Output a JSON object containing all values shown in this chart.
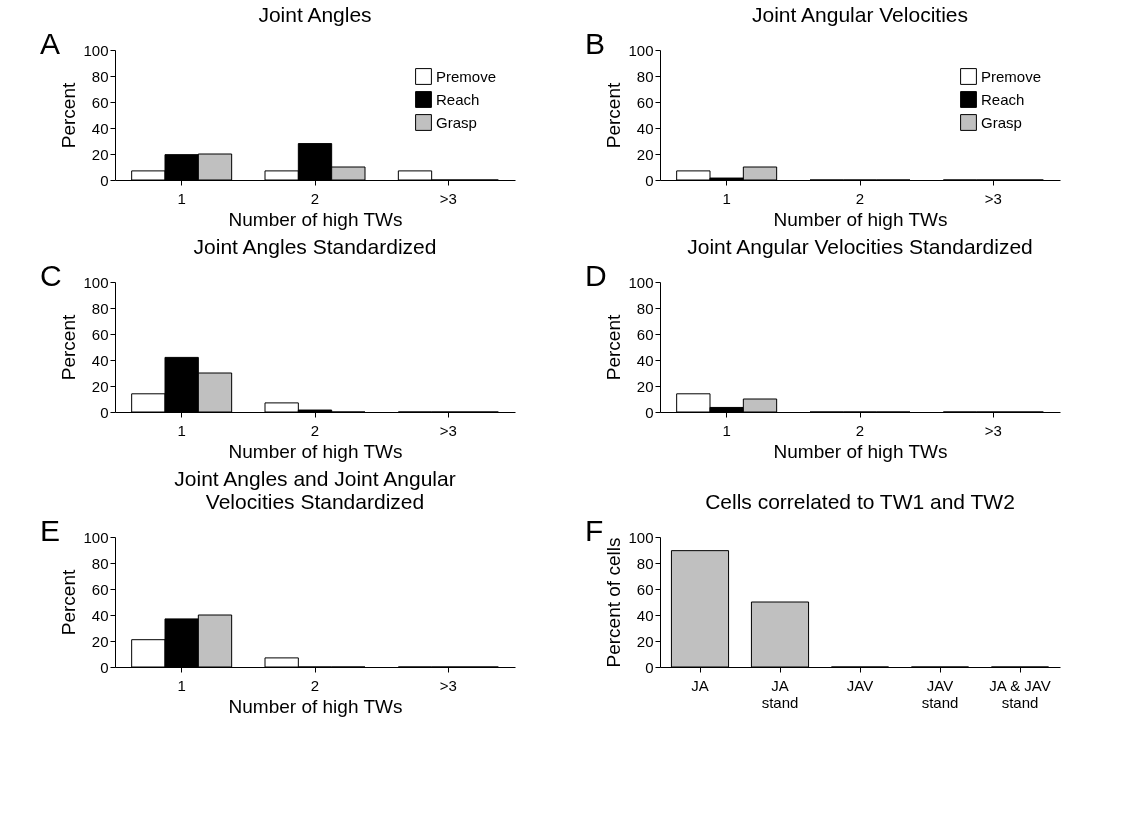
{
  "chart_data": [
    {
      "type": "bar",
      "title": "Joint Angles",
      "annotations": [
        "A"
      ],
      "xlabel": "Number of high TWs",
      "ylabel": "Percent",
      "categories": [
        "1",
        "2",
        ">3"
      ],
      "ylim": [
        0,
        100
      ],
      "yticks": [
        0,
        20,
        40,
        60,
        80,
        100
      ],
      "legend": "top right",
      "grid": false,
      "series": [
        {
          "name": "Premove",
          "color": "#ffffff",
          "values": [
            7,
            7,
            7
          ]
        },
        {
          "name": "Reach",
          "color": "#000000",
          "values": [
            19.5,
            28,
            0
          ]
        },
        {
          "name": "Grasp",
          "color": "#c0c0c0",
          "values": [
            20,
            10,
            0
          ]
        }
      ]
    },
    {
      "type": "bar",
      "title": "Joint Angular Velocities",
      "annotations": [
        "B"
      ],
      "xlabel": "Number of high TWs",
      "ylabel": "Percent",
      "categories": [
        "1",
        "2",
        ">3"
      ],
      "ylim": [
        0,
        100
      ],
      "yticks": [
        0,
        20,
        40,
        60,
        80,
        100
      ],
      "legend": "top right",
      "grid": false,
      "series": [
        {
          "name": "Premove",
          "color": "#ffffff",
          "values": [
            7,
            0,
            0
          ]
        },
        {
          "name": "Reach",
          "color": "#000000",
          "values": [
            1.5,
            0,
            0
          ]
        },
        {
          "name": "Grasp",
          "color": "#c0c0c0",
          "values": [
            10,
            0,
            0
          ]
        }
      ]
    },
    {
      "type": "bar",
      "title": "Joint Angles Standardized",
      "annotations": [
        "C"
      ],
      "xlabel": "Number of high TWs",
      "ylabel": "Percent",
      "categories": [
        "1",
        "2",
        ">3"
      ],
      "ylim": [
        0,
        100
      ],
      "yticks": [
        0,
        20,
        40,
        60,
        80,
        100
      ],
      "grid": false,
      "series": [
        {
          "color": "#ffffff",
          "values": [
            14,
            7,
            0
          ]
        },
        {
          "color": "#000000",
          "values": [
            42,
            1.5,
            0
          ]
        },
        {
          "color": "#c0c0c0",
          "values": [
            30,
            0,
            0
          ]
        }
      ]
    },
    {
      "type": "bar",
      "title": "Joint Angular Velocities Standardized",
      "annotations": [
        "D"
      ],
      "xlabel": "Number of high TWs",
      "ylabel": "Percent",
      "categories": [
        "1",
        "2",
        ">3"
      ],
      "ylim": [
        0,
        100
      ],
      "yticks": [
        0,
        20,
        40,
        60,
        80,
        100
      ],
      "grid": false,
      "series": [
        {
          "color": "#ffffff",
          "values": [
            14,
            0,
            0
          ]
        },
        {
          "color": "#000000",
          "values": [
            3.5,
            0,
            0
          ]
        },
        {
          "color": "#c0c0c0",
          "values": [
            10,
            0,
            0
          ]
        }
      ]
    },
    {
      "type": "bar",
      "title": "Joint Angles and Joint Angular\nVelocities Standardized",
      "annotations": [
        "E"
      ],
      "xlabel": "Number of high TWs",
      "ylabel": "Percent",
      "categories": [
        "1",
        "2",
        ">3"
      ],
      "ylim": [
        0,
        100
      ],
      "yticks": [
        0,
        20,
        40,
        60,
        80,
        100
      ],
      "grid": false,
      "series": [
        {
          "color": "#ffffff",
          "values": [
            21,
            7,
            0
          ]
        },
        {
          "color": "#000000",
          "values": [
            37,
            0,
            0
          ]
        },
        {
          "color": "#c0c0c0",
          "values": [
            40,
            0,
            0
          ]
        }
      ]
    },
    {
      "type": "bar",
      "title": "Cells correlated to TW1 and TW2",
      "annotations": [
        "F"
      ],
      "ylabel": "Percent of cells",
      "categories": [
        "JA",
        "JA\nstand",
        "JAV",
        "JAV\nstand",
        "JA & JAV\nstand"
      ],
      "ylim": [
        0,
        100
      ],
      "yticks": [
        0,
        20,
        40,
        60,
        80,
        100
      ],
      "grid": false,
      "series": [
        {
          "color": "#c0c0c0",
          "values": [
            89.5,
            50,
            0,
            0,
            0
          ]
        }
      ]
    }
  ]
}
